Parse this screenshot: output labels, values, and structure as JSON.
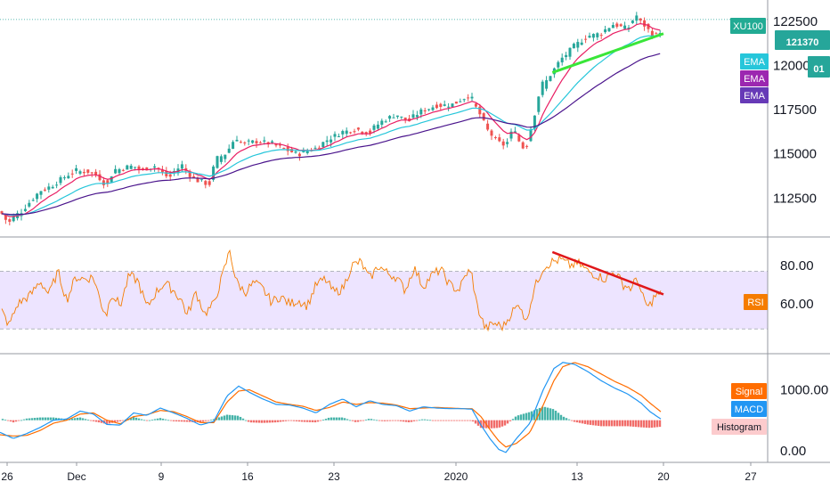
{
  "colors": {
    "up": "#26a69a",
    "down": "#ef5350",
    "ema_fast": "#e91e63",
    "ema_mid": "#26c6da",
    "ema_slow": "#4a148c",
    "rsi_line": "#f57c00",
    "rsi_band": "#ede4ff",
    "trend_up": "#39e639",
    "trend_down": "#e0171a",
    "macd": "#2196f3",
    "signal": "#ff6d00",
    "hist_pos": "#26a69a",
    "hist_neg": "#ef5350",
    "symbol_tag": "#22ab94",
    "price_tag": "#26a69a",
    "ema_tag_1": "#26c6da",
    "ema_tag_2": "#9c27b0",
    "ema_tag_3": "#673ab7",
    "rsi_tag": "#f57c00",
    "macd_tag": "#2196f3",
    "hist_tag": "#fccbcd"
  },
  "chart_data": [
    {
      "type": "candlestick",
      "symbol": "XU100",
      "last_price": "121370",
      "countdown": "01",
      "ylim": [
        110500,
        123500
      ],
      "yticks": [
        "122500",
        "120000",
        "117500",
        "115000",
        "112500"
      ],
      "ytick_values": [
        122500,
        120000,
        117500,
        115000,
        112500
      ],
      "x_labels": [
        "26",
        "Dec",
        "9",
        "16",
        "23",
        "2020",
        "13",
        "20",
        "27"
      ],
      "legend": [
        "EMA",
        "EMA",
        "EMA"
      ],
      "anchors": [
        [
          0,
          111800
        ],
        [
          10,
          111200
        ],
        [
          25,
          111700
        ],
        [
          45,
          112800
        ],
        [
          60,
          113200
        ],
        [
          75,
          113700
        ],
        [
          85,
          114000
        ],
        [
          100,
          114000
        ],
        [
          110,
          113800
        ],
        [
          120,
          113300
        ],
        [
          130,
          114000
        ],
        [
          140,
          114200
        ],
        [
          150,
          114300
        ],
        [
          160,
          114100
        ],
        [
          175,
          114300
        ],
        [
          190,
          113700
        ],
        [
          205,
          114300
        ],
        [
          220,
          113600
        ],
        [
          235,
          113300
        ],
        [
          245,
          114600
        ],
        [
          255,
          115000
        ],
        [
          265,
          115800
        ],
        [
          275,
          115600
        ],
        [
          290,
          115700
        ],
        [
          305,
          115600
        ],
        [
          320,
          115300
        ],
        [
          335,
          115000
        ],
        [
          355,
          115300
        ],
        [
          370,
          115800
        ],
        [
          385,
          116200
        ],
        [
          400,
          116400
        ],
        [
          415,
          116200
        ],
        [
          430,
          116800
        ],
        [
          445,
          117200
        ],
        [
          460,
          116900
        ],
        [
          475,
          117400
        ],
        [
          490,
          117700
        ],
        [
          510,
          117800
        ],
        [
          528,
          118300
        ],
        [
          538,
          117500
        ],
        [
          548,
          116500
        ],
        [
          558,
          115800
        ],
        [
          568,
          115500
        ],
        [
          578,
          116300
        ],
        [
          590,
          115300
        ],
        [
          598,
          116400
        ],
        [
          608,
          118500
        ],
        [
          618,
          119300
        ],
        [
          630,
          120200
        ],
        [
          645,
          121000
        ],
        [
          660,
          121600
        ],
        [
          675,
          121800
        ],
        [
          690,
          122300
        ],
        [
          705,
          122100
        ],
        [
          715,
          122700
        ],
        [
          725,
          122300
        ],
        [
          735,
          121700
        ],
        [
          742,
          121900
        ]
      ],
      "trendline": {
        "x": [
          "Jan 11",
          "Jan 20"
        ],
        "y": [
          119600,
          121800
        ]
      }
    },
    {
      "type": "line",
      "name": "RSI",
      "ylim": [
        36,
        93
      ],
      "yticks": [
        "80.00",
        "60.00"
      ],
      "ytick_values": [
        80,
        60
      ],
      "band": [
        47,
        77
      ],
      "anchors": [
        [
          0,
          58
        ],
        [
          10,
          49
        ],
        [
          20,
          60
        ],
        [
          35,
          65
        ],
        [
          45,
          72
        ],
        [
          55,
          65
        ],
        [
          65,
          77
        ],
        [
          75,
          62
        ],
        [
          85,
          74
        ],
        [
          95,
          73
        ],
        [
          105,
          74
        ],
        [
          115,
          58
        ],
        [
          120,
          55
        ],
        [
          125,
          66
        ],
        [
          135,
          59
        ],
        [
          145,
          75
        ],
        [
          155,
          72
        ],
        [
          165,
          58
        ],
        [
          175,
          66
        ],
        [
          185,
          71
        ],
        [
          195,
          67
        ],
        [
          205,
          61
        ],
        [
          210,
          54
        ],
        [
          220,
          66
        ],
        [
          230,
          55
        ],
        [
          240,
          60
        ],
        [
          250,
          75
        ],
        [
          258,
          88
        ],
        [
          265,
          72
        ],
        [
          275,
          66
        ],
        [
          285,
          71
        ],
        [
          295,
          68
        ],
        [
          305,
          61
        ],
        [
          315,
          64
        ],
        [
          325,
          60
        ],
        [
          335,
          62
        ],
        [
          345,
          59
        ],
        [
          355,
          70
        ],
        [
          365,
          73
        ],
        [
          375,
          66
        ],
        [
          385,
          68
        ],
        [
          395,
          80
        ],
        [
          405,
          82
        ],
        [
          415,
          73
        ],
        [
          425,
          80
        ],
        [
          435,
          76
        ],
        [
          445,
          74
        ],
        [
          455,
          67
        ],
        [
          465,
          79
        ],
        [
          475,
          69
        ],
        [
          485,
          75
        ],
        [
          495,
          78
        ],
        [
          505,
          70
        ],
        [
          515,
          67
        ],
        [
          525,
          77
        ],
        [
          530,
          75
        ],
        [
          535,
          60
        ],
        [
          545,
          47
        ],
        [
          555,
          50
        ],
        [
          565,
          48
        ],
        [
          575,
          56
        ],
        [
          585,
          60
        ],
        [
          590,
          50
        ],
        [
          600,
          68
        ],
        [
          610,
          79
        ],
        [
          620,
          82
        ],
        [
          630,
          83
        ],
        [
          640,
          80
        ],
        [
          650,
          81
        ],
        [
          660,
          77
        ],
        [
          670,
          75
        ],
        [
          680,
          73
        ],
        [
          690,
          77
        ],
        [
          700,
          70
        ],
        [
          710,
          68
        ],
        [
          715,
          75
        ],
        [
          720,
          65
        ],
        [
          728,
          58
        ],
        [
          735,
          64
        ],
        [
          742,
          65
        ]
      ],
      "trendline": {
        "x": [
          "Jan 11",
          "Jan 20"
        ],
        "y": [
          87,
          65
        ]
      }
    },
    {
      "type": "line",
      "name": "MACD",
      "ylim": [
        -150,
        1550
      ],
      "yticks": [
        "1000.00",
        "0.00"
      ],
      "ytick_values": [
        1000,
        0
      ],
      "zero_line": 500,
      "legend": [
        "Signal",
        "MACD",
        "Histogram"
      ],
      "macd_anchors": [
        [
          0,
          300
        ],
        [
          15,
          200
        ],
        [
          30,
          280
        ],
        [
          45,
          380
        ],
        [
          60,
          500
        ],
        [
          75,
          520
        ],
        [
          90,
          650
        ],
        [
          105,
          600
        ],
        [
          120,
          430
        ],
        [
          135,
          420
        ],
        [
          150,
          620
        ],
        [
          165,
          580
        ],
        [
          180,
          700
        ],
        [
          195,
          620
        ],
        [
          210,
          530
        ],
        [
          225,
          420
        ],
        [
          240,
          480
        ],
        [
          255,
          900
        ],
        [
          268,
          1060
        ],
        [
          280,
          960
        ],
        [
          295,
          850
        ],
        [
          310,
          760
        ],
        [
          325,
          750
        ],
        [
          340,
          700
        ],
        [
          355,
          620
        ],
        [
          370,
          760
        ],
        [
          385,
          850
        ],
        [
          400,
          720
        ],
        [
          415,
          820
        ],
        [
          430,
          760
        ],
        [
          445,
          740
        ],
        [
          460,
          650
        ],
        [
          475,
          720
        ],
        [
          490,
          700
        ],
        [
          505,
          690
        ],
        [
          520,
          690
        ],
        [
          530,
          680
        ],
        [
          540,
          420
        ],
        [
          550,
          200
        ],
        [
          560,
          20
        ],
        [
          568,
          -30
        ],
        [
          580,
          200
        ],
        [
          595,
          450
        ],
        [
          610,
          1000
        ],
        [
          622,
          1350
        ],
        [
          632,
          1450
        ],
        [
          645,
          1420
        ],
        [
          660,
          1300
        ],
        [
          675,
          1150
        ],
        [
          690,
          1030
        ],
        [
          705,
          930
        ],
        [
          720,
          780
        ],
        [
          730,
          640
        ],
        [
          742,
          520
        ]
      ],
      "signal_anchors": [
        [
          0,
          260
        ],
        [
          15,
          240
        ],
        [
          30,
          250
        ],
        [
          45,
          330
        ],
        [
          60,
          450
        ],
        [
          75,
          500
        ],
        [
          90,
          600
        ],
        [
          105,
          620
        ],
        [
          120,
          500
        ],
        [
          135,
          440
        ],
        [
          150,
          560
        ],
        [
          165,
          590
        ],
        [
          180,
          660
        ],
        [
          195,
          640
        ],
        [
          210,
          560
        ],
        [
          225,
          460
        ],
        [
          240,
          460
        ],
        [
          255,
          800
        ],
        [
          268,
          980
        ],
        [
          280,
          1000
        ],
        [
          295,
          900
        ],
        [
          310,
          800
        ],
        [
          325,
          760
        ],
        [
          340,
          730
        ],
        [
          355,
          660
        ],
        [
          370,
          710
        ],
        [
          385,
          800
        ],
        [
          400,
          760
        ],
        [
          415,
          790
        ],
        [
          430,
          780
        ],
        [
          445,
          750
        ],
        [
          460,
          690
        ],
        [
          475,
          700
        ],
        [
          490,
          710
        ],
        [
          505,
          700
        ],
        [
          520,
          690
        ],
        [
          530,
          690
        ],
        [
          540,
          560
        ],
        [
          550,
          350
        ],
        [
          560,
          160
        ],
        [
          568,
          60
        ],
        [
          580,
          120
        ],
        [
          595,
          300
        ],
        [
          610,
          750
        ],
        [
          622,
          1150
        ],
        [
          632,
          1380
        ],
        [
          645,
          1450
        ],
        [
          660,
          1380
        ],
        [
          675,
          1260
        ],
        [
          690,
          1140
        ],
        [
          705,
          1040
        ],
        [
          720,
          910
        ],
        [
          730,
          780
        ],
        [
          742,
          640
        ]
      ]
    }
  ]
}
